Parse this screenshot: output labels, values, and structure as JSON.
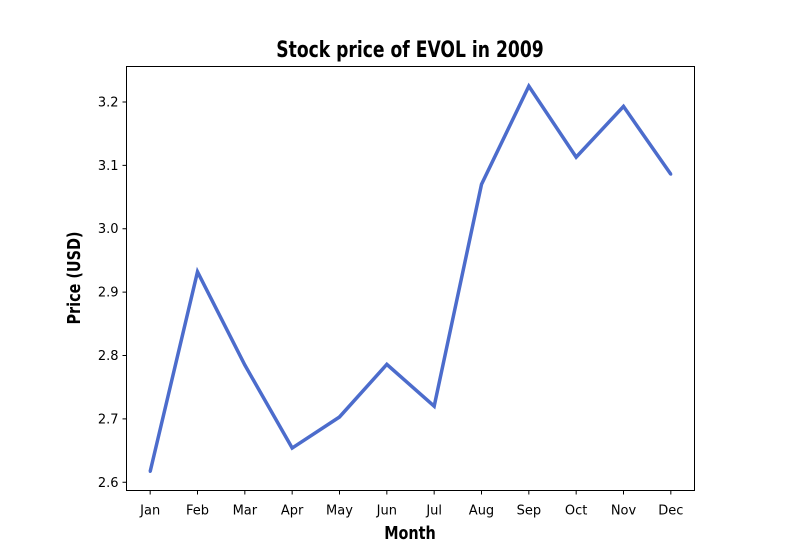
{
  "chart_data": {
    "type": "line",
    "title": "Stock price of EVOL in 2009",
    "xlabel": "Month",
    "ylabel": "Price (USD)",
    "categories": [
      "Jan",
      "Feb",
      "Mar",
      "Apr",
      "May",
      "Jun",
      "Jul",
      "Aug",
      "Sep",
      "Oct",
      "Nov",
      "Dec"
    ],
    "series": [
      {
        "values": [
          2.617,
          2.932,
          2.785,
          2.654,
          2.703,
          2.786,
          2.72,
          3.07,
          3.225,
          3.113,
          3.193,
          3.086
        ],
        "color": "#4c6ccc"
      }
    ],
    "ylim": [
      2.587,
      3.256
    ],
    "yticks": [
      "2.6",
      "2.7",
      "2.8",
      "2.9",
      "3.0",
      "3.1",
      "3.2"
    ],
    "grid": false,
    "legend": "none"
  }
}
